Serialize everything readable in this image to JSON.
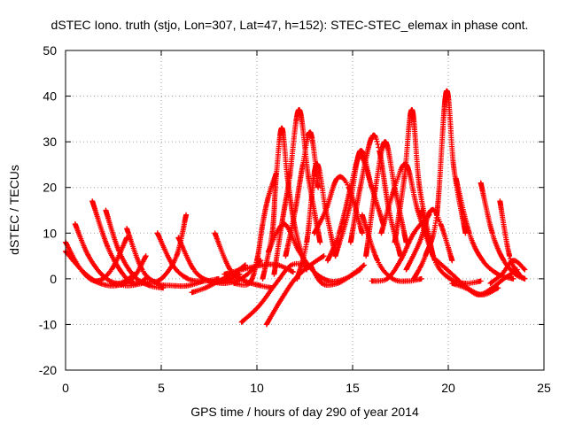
{
  "chart_data": {
    "type": "line",
    "title": "dSTEC Iono. truth (stjo, Lon=307, Lat=47, h=152): STEC-STEC_elemax in phase cont.",
    "xlabel": "GPS time / hours of day 290 of year 2014",
    "ylabel": "dSTEC  / TECUs",
    "xlim": [
      0,
      25
    ],
    "ylim": [
      -20,
      50
    ],
    "x_ticks": [
      "0",
      "5",
      "10",
      "15",
      "20",
      "25"
    ],
    "y_ticks": [
      "-20",
      "-10",
      "0",
      "10",
      "20",
      "30",
      "40",
      "50"
    ],
    "grid": true,
    "marker": "+",
    "color": "#ff0000",
    "series": [
      {
        "x": [
          0,
          0.8,
          1.6,
          2.4,
          3.2
        ],
        "y": [
          8,
          2,
          -0.5,
          2,
          9
        ]
      },
      {
        "x": [
          0,
          0.6,
          1.2,
          1.8,
          2.6,
          3.5,
          4.2
        ],
        "y": [
          6,
          3,
          0.5,
          -1,
          -1.5,
          0,
          5
        ]
      },
      {
        "x": [
          0.5,
          1.2,
          2,
          2.8,
          3.6
        ],
        "y": [
          12,
          5,
          0.5,
          -1,
          1
        ]
      },
      {
        "x": [
          1.4,
          2.2,
          3,
          3.6,
          4.2
        ],
        "y": [
          17,
          7,
          1,
          -1,
          0
        ]
      },
      {
        "x": [
          2.1,
          2.8,
          3.6,
          4.4,
          5.1
        ],
        "y": [
          15,
          6,
          0.5,
          -1.5,
          -2
        ]
      },
      {
        "x": [
          2.4,
          3.3,
          4.2,
          5,
          5.8,
          6.3
        ],
        "y": [
          -1,
          -1.5,
          -0.8,
          0,
          5,
          14
        ]
      },
      {
        "x": [
          3.2,
          4,
          4.8,
          5.6,
          6.4,
          7.2
        ],
        "y": [
          11,
          2,
          -1,
          -1.5,
          -1.5,
          -0.5
        ]
      },
      {
        "x": [
          4.8,
          5.6,
          6.4,
          7.2,
          8
        ],
        "y": [
          10,
          3,
          0,
          -0.5,
          0
        ]
      },
      {
        "x": [
          5.9,
          6.7,
          7.5,
          8.3,
          9.1
        ],
        "y": [
          9,
          2,
          -0.5,
          -0.5,
          1
        ]
      },
      {
        "x": [
          6.6,
          7.3,
          8,
          8.7,
          9.4
        ],
        "y": [
          -3,
          -2,
          -0.5,
          1,
          3
        ]
      },
      {
        "x": [
          7.5,
          8.2,
          8.9,
          9.5,
          10.2
        ],
        "y": [
          -0.5,
          -1,
          -0.5,
          1,
          4
        ]
      },
      {
        "x": [
          7.8,
          8.6,
          9.4,
          10.2,
          10.8
        ],
        "y": [
          10,
          2,
          -0.5,
          -1.5,
          -2
        ]
      },
      {
        "x": [
          8.3,
          9.2,
          10.3,
          11.1,
          11.9
        ],
        "y": [
          1,
          2,
          3,
          3,
          1.5
        ]
      },
      {
        "x": [
          9.2,
          10.1,
          11,
          11.8,
          12.6
        ],
        "y": [
          -9.5,
          -6,
          -1,
          3,
          3
        ]
      },
      {
        "x": [
          10.5,
          11.2,
          12,
          12.8,
          13.5
        ],
        "y": [
          -10,
          -5,
          0,
          3,
          5
        ]
      },
      {
        "x": [
          8.8,
          9.6,
          10,
          10.3,
          10.6,
          11
        ],
        "y": [
          -1,
          -1,
          4,
          12,
          18,
          23
        ]
      },
      {
        "x": [
          10.3,
          10.8,
          11,
          11.3,
          11.6,
          12,
          12.6
        ],
        "y": [
          0,
          10,
          22,
          33,
          22,
          11,
          2
        ]
      },
      {
        "x": [
          10.9,
          11.3,
          11.7,
          12.2,
          12.7,
          13.3
        ],
        "y": [
          1,
          12,
          22,
          37,
          22,
          8
        ]
      },
      {
        "x": [
          11.5,
          12,
          12.4,
          12.8,
          13.2
        ],
        "y": [
          5,
          15,
          25,
          32,
          20
        ]
      },
      {
        "x": [
          10.6,
          11.4,
          12.2,
          13,
          13.8,
          14.6,
          15.4
        ],
        "y": [
          6,
          12,
          6,
          1.5,
          -0.5,
          0,
          2
        ]
      },
      {
        "x": [
          12.1,
          12.6,
          13.1,
          13.6,
          14.1
        ],
        "y": [
          0,
          8,
          25,
          15,
          5
        ]
      },
      {
        "x": [
          13,
          13.6,
          14.2,
          14.8,
          15.5
        ],
        "y": [
          10,
          15,
          22,
          20,
          10
        ]
      },
      {
        "x": [
          12.8,
          13.4,
          14.2,
          15,
          15.6
        ],
        "y": [
          3,
          -1,
          -1,
          1,
          3
        ]
      },
      {
        "x": [
          13.7,
          14.3,
          14.9,
          15.4,
          16
        ],
        "y": [
          4,
          10,
          20,
          27,
          20
        ]
      },
      {
        "x": [
          14.1,
          14.8,
          15.4,
          16,
          16.6
        ],
        "y": [
          5,
          15,
          28,
          20,
          12
        ]
      },
      {
        "x": [
          14.9,
          15.4,
          16,
          16.4,
          16.9,
          17.5
        ],
        "y": [
          8,
          20,
          31,
          28,
          15,
          5
        ]
      },
      {
        "x": [
          15.7,
          16.2,
          16.7,
          17.2,
          17.8
        ],
        "y": [
          5,
          20,
          30,
          20,
          8
        ]
      },
      {
        "x": [
          15.5,
          16.3,
          17.1,
          17.9,
          18.6
        ],
        "y": [
          14,
          4,
          0,
          -0.5,
          0
        ]
      },
      {
        "x": [
          16,
          16.8,
          17.5,
          18.2,
          19
        ],
        "y": [
          -0.5,
          0,
          4,
          10,
          14
        ]
      },
      {
        "x": [
          16.5,
          17.2,
          17.8,
          18.4,
          19.2
        ],
        "y": [
          10,
          20,
          25,
          15,
          5
        ]
      },
      {
        "x": [
          17.2,
          17.7,
          18.1,
          18.5,
          19.2
        ],
        "y": [
          8,
          22,
          37,
          20,
          5
        ]
      },
      {
        "x": [
          17.8,
          18.5,
          19.1,
          19.6,
          20.2
        ],
        "y": [
          2,
          8,
          15,
          12,
          4
        ]
      },
      {
        "x": [
          18.2,
          18.8,
          19.4,
          19.9,
          20.3,
          20.9
        ],
        "y": [
          0,
          5,
          14,
          41,
          24,
          10
        ]
      },
      {
        "x": [
          18.6,
          19.3,
          20.1,
          20.9,
          21.7
        ],
        "y": [
          15,
          4,
          0,
          -1,
          -0.5
        ]
      },
      {
        "x": [
          19.4,
          20.2,
          21,
          21.8,
          22.6
        ],
        "y": [
          4,
          1,
          -2,
          -3.5,
          -2
        ]
      },
      {
        "x": [
          20.2,
          20.9,
          21.6,
          22.3,
          22.9,
          23.6
        ],
        "y": [
          -1,
          -2,
          -3.5,
          -2,
          0,
          2
        ]
      },
      {
        "x": [
          20.4,
          21.1,
          21.8,
          22.6,
          23.4
        ],
        "y": [
          22,
          10,
          4,
          1,
          0
        ]
      },
      {
        "x": [
          21.7,
          22.3,
          22.9,
          23.5,
          24
        ],
        "y": [
          21,
          10,
          4,
          1,
          0
        ]
      },
      {
        "x": [
          22.7,
          23.2,
          23.7,
          24
        ],
        "y": [
          17,
          5,
          1,
          0
        ]
      },
      {
        "x": [
          22.2,
          22.8,
          23.4,
          24
        ],
        "y": [
          -1,
          1,
          4,
          2
        ]
      }
    ]
  }
}
